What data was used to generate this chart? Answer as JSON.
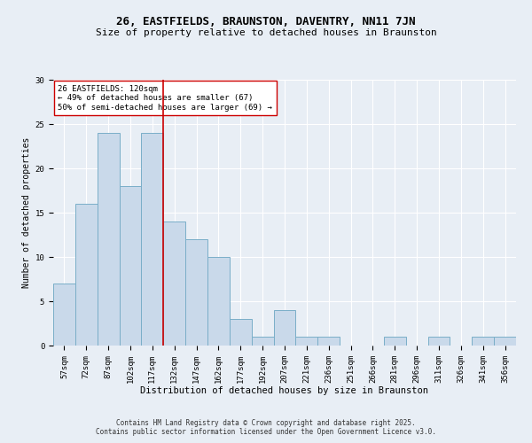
{
  "title1": "26, EASTFIELDS, BRAUNSTON, DAVENTRY, NN11 7JN",
  "title2": "Size of property relative to detached houses in Braunston",
  "xlabel": "Distribution of detached houses by size in Braunston",
  "ylabel": "Number of detached properties",
  "categories": [
    "57sqm",
    "72sqm",
    "87sqm",
    "102sqm",
    "117sqm",
    "132sqm",
    "147sqm",
    "162sqm",
    "177sqm",
    "192sqm",
    "207sqm",
    "221sqm",
    "236sqm",
    "251sqm",
    "266sqm",
    "281sqm",
    "296sqm",
    "311sqm",
    "326sqm",
    "341sqm",
    "356sqm"
  ],
  "values": [
    7,
    16,
    24,
    18,
    24,
    14,
    12,
    10,
    3,
    1,
    4,
    1,
    1,
    0,
    0,
    1,
    0,
    1,
    0,
    1,
    1
  ],
  "bar_color": "#c9d9ea",
  "bar_edge_color": "#7aaec8",
  "reference_line_x": 4.5,
  "reference_line_color": "#cc0000",
  "annotation_text": "26 EASTFIELDS: 120sqm\n← 49% of detached houses are smaller (67)\n50% of semi-detached houses are larger (69) →",
  "annotation_box_color": "#ffffff",
  "annotation_box_edge_color": "#cc0000",
  "background_color": "#e8eef5",
  "grid_color": "#ffffff",
  "footer_text": "Contains HM Land Registry data © Crown copyright and database right 2025.\nContains public sector information licensed under the Open Government Licence v3.0.",
  "ylim": [
    0,
    30
  ],
  "yticks": [
    0,
    5,
    10,
    15,
    20,
    25,
    30
  ],
  "title1_fontsize": 9,
  "title2_fontsize": 8,
  "xlabel_fontsize": 7.5,
  "ylabel_fontsize": 7,
  "tick_fontsize": 6.5,
  "annot_fontsize": 6.5,
  "footer_fontsize": 5.5
}
